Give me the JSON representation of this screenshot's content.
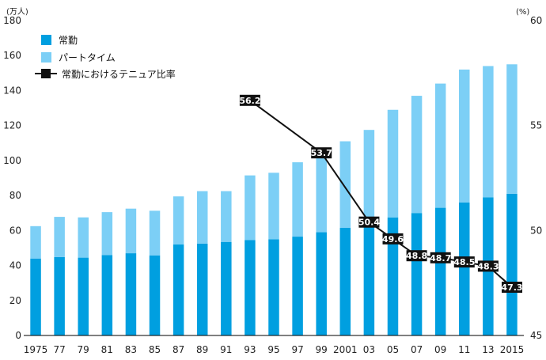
{
  "chart_data": {
    "type": "bar",
    "title": "",
    "left_axis_unit": "(万人)",
    "right_axis_unit": "(%)",
    "ylim": [
      0,
      180
    ],
    "y_ticks": [
      "0",
      "20",
      "40",
      "60",
      "80",
      "100",
      "120",
      "140",
      "160",
      "180"
    ],
    "y2lim": [
      45,
      60
    ],
    "y2_ticks": [
      "45",
      "50",
      "55",
      "60"
    ],
    "categories": [
      "1975",
      "77",
      "79",
      "81",
      "83",
      "85",
      "87",
      "89",
      "91",
      "93",
      "95",
      "97",
      "99",
      "2001",
      "03",
      "05",
      "07",
      "09",
      "11",
      "13",
      "2015"
    ],
    "series": [
      {
        "name": "常勤",
        "color": "#009fe0",
        "values": [
          44,
          44.8,
          44.5,
          46,
          47,
          45.8,
          52,
          52.5,
          53.5,
          54.5,
          55,
          56.5,
          59,
          61.5,
          65,
          67.5,
          70,
          73,
          76,
          79,
          81
        ]
      },
      {
        "name": "パートタイム",
        "color": "#7ccff6",
        "values": [
          18.5,
          23,
          23,
          24.5,
          25.5,
          25.5,
          27.5,
          30,
          29,
          37,
          38,
          42.5,
          48,
          49.5,
          52.5,
          61.5,
          67,
          71,
          76,
          75,
          74
        ]
      }
    ],
    "line_series": {
      "name": "常勤におけるテニュア比率",
      "color": "#111111",
      "axis": "right",
      "x": [
        "93",
        "99",
        "03",
        "05",
        "07",
        "09",
        "11",
        "13",
        "2015"
      ],
      "values": [
        56.2,
        53.7,
        50.4,
        49.6,
        48.8,
        48.7,
        48.5,
        48.3,
        47.3
      ],
      "labels": [
        "56.2",
        "53.7",
        "50.4",
        "49.6",
        "48.8",
        "48.7",
        "48.5",
        "48.3",
        "47.3"
      ]
    },
    "legend": {
      "placement": "top-left",
      "items": [
        "常勤",
        "パートタイム",
        "常勤におけるテニュア比率"
      ]
    }
  }
}
